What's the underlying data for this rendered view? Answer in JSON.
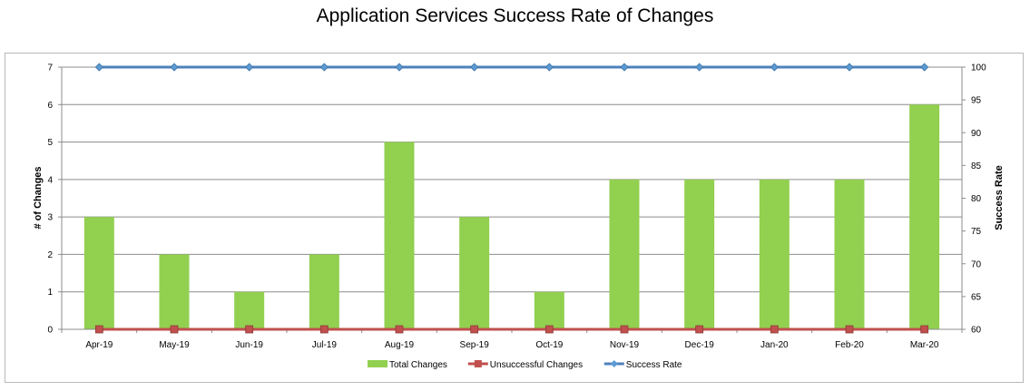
{
  "chart_data": {
    "type": "bar",
    "title": "Application Services Success Rate of Changes",
    "categories": [
      "Apr-19",
      "May-19",
      "Jun-19",
      "Jul-19",
      "Aug-19",
      "Sep-19",
      "Oct-19",
      "Nov-19",
      "Dec-19",
      "Jan-20",
      "Feb-20",
      "Mar-20"
    ],
    "series": [
      {
        "name": "Total Changes",
        "kind": "bar",
        "axis": "left",
        "color": "#92d050",
        "values": [
          3,
          2,
          1,
          2,
          5,
          3,
          1,
          4,
          4,
          4,
          4,
          6
        ]
      },
      {
        "name": "Unsuccessful Changes",
        "kind": "line",
        "axis": "left",
        "color": "#c0504d",
        "values": [
          0,
          0,
          0,
          0,
          0,
          0,
          0,
          0,
          0,
          0,
          0,
          0
        ]
      },
      {
        "name": "Success Rate",
        "kind": "line",
        "axis": "right",
        "color": "#4f81bd",
        "values": [
          100,
          100,
          100,
          100,
          100,
          100,
          100,
          100,
          100,
          100,
          100,
          100
        ]
      }
    ],
    "ylabel": "# of Changes",
    "y2label": "Success Rate",
    "ylim": [
      0,
      7
    ],
    "y2lim": [
      60,
      100
    ],
    "yticks": [
      "0",
      "1",
      "2",
      "3",
      "4",
      "5",
      "6",
      "7"
    ],
    "y2ticks": [
      "60",
      "65",
      "70",
      "75",
      "80",
      "85",
      "90",
      "95",
      "100"
    ],
    "grid": true,
    "legend": "bottom"
  }
}
